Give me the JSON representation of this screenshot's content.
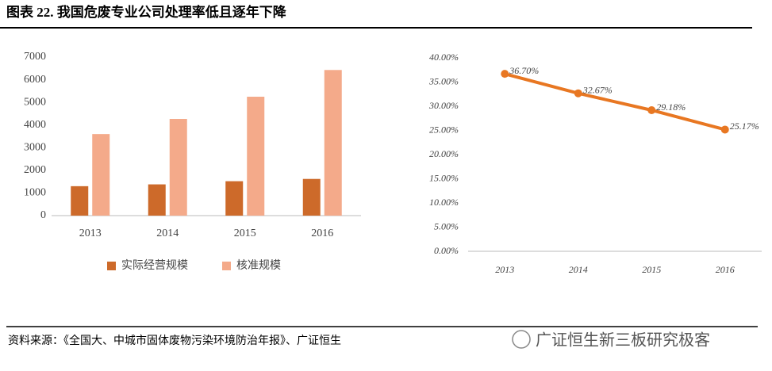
{
  "header": {
    "title": "图表 22. 我国危废专业公司处理率低且逐年下降"
  },
  "footer": {
    "source": "资料来源：《全国大、中城市固体废物污染环境防治年报》、广证恒生",
    "watermark": "广证恒生新三板研究极客"
  },
  "chart_data": [
    {
      "type": "bar",
      "categories": [
        "2013",
        "2014",
        "2015",
        "2016"
      ],
      "series": [
        {
          "name": "实际经营规模",
          "color": "#cd6a2a",
          "values": [
            1300,
            1380,
            1520,
            1620
          ]
        },
        {
          "name": "核准规模",
          "color": "#f4aa8a",
          "values": [
            3600,
            4270,
            5250,
            6430
          ]
        }
      ],
      "ylim": [
        0,
        7000
      ],
      "yticks": [
        0,
        1000,
        2000,
        3000,
        4000,
        5000,
        6000,
        7000
      ],
      "legend": "bottom"
    },
    {
      "type": "line",
      "categories": [
        "2013",
        "2014",
        "2015",
        "2016"
      ],
      "values": [
        36.7,
        32.67,
        29.18,
        25.17
      ],
      "value_labels": [
        "36.70%",
        "32.67%",
        "29.18%",
        "25.17%"
      ],
      "color": "#e87722",
      "ylim": [
        0,
        40
      ],
      "yticks": [
        {
          "value": 0,
          "label": "0.00%"
        },
        {
          "value": 5,
          "label": "5.00%"
        },
        {
          "value": 10,
          "label": "10.00%"
        },
        {
          "value": 15,
          "label": "15.00%"
        },
        {
          "value": 20,
          "label": "20.00%"
        },
        {
          "value": 25,
          "label": "25.00%"
        },
        {
          "value": 30,
          "label": "30.00%"
        },
        {
          "value": 35,
          "label": "35.00%"
        },
        {
          "value": 40,
          "label": "40.00%"
        }
      ]
    }
  ]
}
